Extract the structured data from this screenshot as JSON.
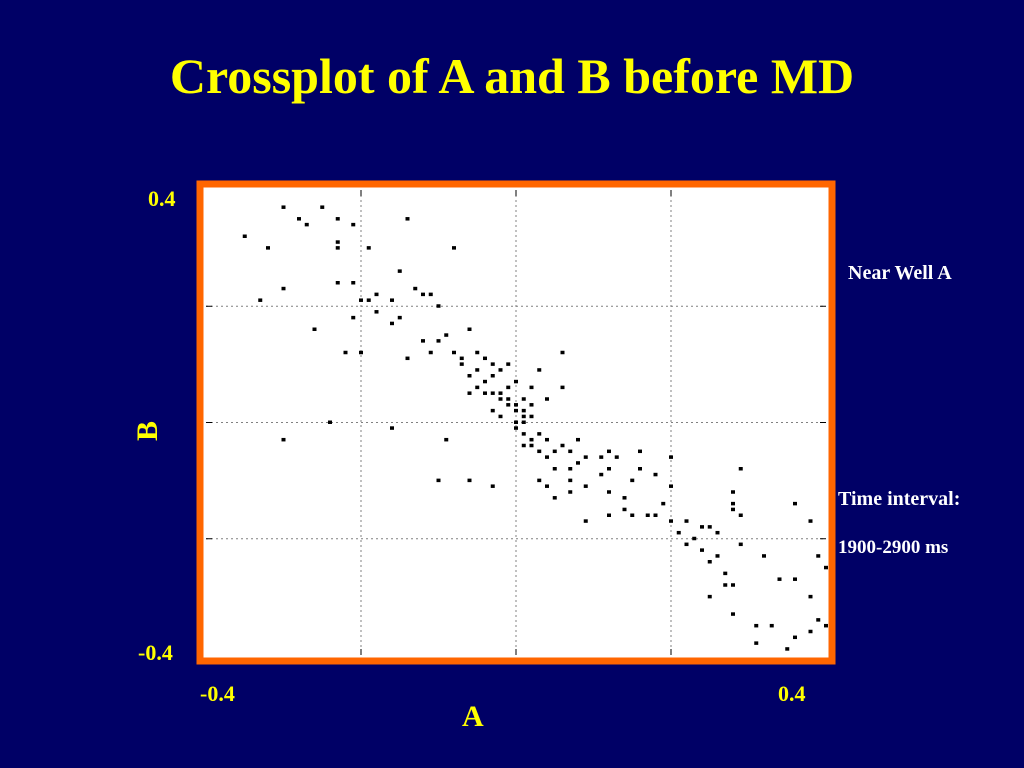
{
  "title": "Crossplot of A and B before MD",
  "annotations": {
    "near_well": "Near Well A",
    "time_interval_label": "Time interval:",
    "time_interval_value": "1900-2900 ms"
  },
  "colors": {
    "background": "#000066",
    "title": "#ffff00",
    "frame": "#ff6600",
    "plot_bg": "#ffffff",
    "points": "#000000",
    "grid": "#808080",
    "annotation_text": "#ffffff"
  },
  "chart_data": {
    "type": "scatter",
    "title": "Crossplot of A and B before MD",
    "xlabel": "A",
    "ylabel": "B",
    "xlim": [
      -0.4,
      0.4
    ],
    "ylim": [
      -0.4,
      0.4
    ],
    "x_ticks": [
      {
        "value": -0.4,
        "label": "-0.4"
      },
      {
        "value": 0.4,
        "label": "0.4"
      }
    ],
    "y_ticks": [
      {
        "value": 0.4,
        "label": "0.4"
      },
      {
        "value": -0.4,
        "label": "-0.4"
      }
    ],
    "grid": true,
    "grid_x": [
      -0.2,
      0.0,
      0.2
    ],
    "grid_y": [
      -0.2,
      0.0,
      0.2
    ],
    "series": [
      {
        "points": [
          [
            -0.35,
            0.32
          ],
          [
            -0.32,
            0.3
          ],
          [
            -0.3,
            0.37
          ],
          [
            -0.28,
            0.35
          ],
          [
            -0.27,
            0.34
          ],
          [
            -0.25,
            0.37
          ],
          [
            -0.23,
            0.35
          ],
          [
            -0.23,
            0.31
          ],
          [
            -0.23,
            0.3
          ],
          [
            -0.21,
            0.34
          ],
          [
            -0.19,
            0.3
          ],
          [
            -0.14,
            0.35
          ],
          [
            -0.08,
            0.3
          ],
          [
            -0.33,
            0.21
          ],
          [
            -0.3,
            0.23
          ],
          [
            -0.23,
            0.24
          ],
          [
            -0.21,
            0.24
          ],
          [
            -0.2,
            0.21
          ],
          [
            -0.19,
            0.21
          ],
          [
            -0.18,
            0.22
          ],
          [
            -0.18,
            0.19
          ],
          [
            -0.16,
            0.21
          ],
          [
            -0.15,
            0.18
          ],
          [
            -0.15,
            0.26
          ],
          [
            -0.13,
            0.23
          ],
          [
            -0.12,
            0.22
          ],
          [
            -0.11,
            0.22
          ],
          [
            -0.1,
            0.2
          ],
          [
            -0.26,
            0.16
          ],
          [
            -0.22,
            0.12
          ],
          [
            -0.21,
            0.18
          ],
          [
            -0.2,
            0.12
          ],
          [
            -0.16,
            0.17
          ],
          [
            -0.14,
            0.11
          ],
          [
            -0.12,
            0.14
          ],
          [
            -0.11,
            0.12
          ],
          [
            -0.1,
            0.14
          ],
          [
            -0.09,
            0.15
          ],
          [
            -0.08,
            0.12
          ],
          [
            -0.07,
            0.11
          ],
          [
            -0.06,
            0.16
          ],
          [
            -0.05,
            0.12
          ],
          [
            -0.07,
            0.1
          ],
          [
            -0.06,
            0.08
          ],
          [
            -0.05,
            0.09
          ],
          [
            -0.04,
            0.11
          ],
          [
            -0.04,
            0.07
          ],
          [
            -0.03,
            0.1
          ],
          [
            -0.03,
            0.08
          ],
          [
            -0.02,
            0.09
          ],
          [
            -0.02,
            0.05
          ],
          [
            -0.01,
            0.1
          ],
          [
            -0.01,
            0.06
          ],
          [
            -0.01,
            0.04
          ],
          [
            0.0,
            0.03
          ],
          [
            0.0,
            0.07
          ],
          [
            0.01,
            0.04
          ],
          [
            0.01,
            0.02
          ],
          [
            0.02,
            0.06
          ],
          [
            0.02,
            0.03
          ],
          [
            0.03,
            0.09
          ],
          [
            0.04,
            0.04
          ],
          [
            0.06,
            0.12
          ],
          [
            0.06,
            0.06
          ],
          [
            -0.06,
            0.05
          ],
          [
            -0.05,
            0.06
          ],
          [
            -0.04,
            0.05
          ],
          [
            -0.03,
            0.05
          ],
          [
            -0.02,
            0.04
          ],
          [
            -0.01,
            0.03
          ],
          [
            0.0,
            0.02
          ],
          [
            0.01,
            0.01
          ],
          [
            -0.03,
            0.02
          ],
          [
            -0.02,
            0.01
          ],
          [
            0.0,
            0.0
          ],
          [
            0.01,
            0.0
          ],
          [
            0.02,
            0.01
          ],
          [
            -0.24,
            0.0
          ],
          [
            -0.16,
            -0.01
          ],
          [
            -0.3,
            -0.03
          ],
          [
            -0.09,
            -0.03
          ],
          [
            0.0,
            -0.01
          ],
          [
            0.01,
            -0.02
          ],
          [
            0.02,
            -0.03
          ],
          [
            0.03,
            -0.02
          ],
          [
            0.04,
            -0.03
          ],
          [
            0.02,
            -0.04
          ],
          [
            0.01,
            -0.04
          ],
          [
            0.03,
            -0.05
          ],
          [
            0.04,
            -0.06
          ],
          [
            0.05,
            -0.05
          ],
          [
            0.06,
            -0.04
          ],
          [
            0.07,
            -0.05
          ],
          [
            0.08,
            -0.03
          ],
          [
            0.08,
            -0.07
          ],
          [
            0.09,
            -0.06
          ],
          [
            0.07,
            -0.08
          ],
          [
            0.05,
            -0.08
          ],
          [
            0.11,
            -0.06
          ],
          [
            0.12,
            -0.05
          ],
          [
            0.12,
            -0.08
          ],
          [
            0.13,
            -0.06
          ],
          [
            0.16,
            -0.05
          ],
          [
            0.2,
            -0.06
          ],
          [
            -0.1,
            -0.1
          ],
          [
            -0.06,
            -0.1
          ],
          [
            -0.03,
            -0.11
          ],
          [
            0.03,
            -0.1
          ],
          [
            0.04,
            -0.11
          ],
          [
            0.05,
            -0.13
          ],
          [
            0.07,
            -0.12
          ],
          [
            0.07,
            -0.1
          ],
          [
            0.09,
            -0.11
          ],
          [
            0.11,
            -0.09
          ],
          [
            0.12,
            -0.12
          ],
          [
            0.15,
            -0.1
          ],
          [
            0.16,
            -0.08
          ],
          [
            0.18,
            -0.09
          ],
          [
            0.2,
            -0.11
          ],
          [
            0.09,
            -0.17
          ],
          [
            0.12,
            -0.16
          ],
          [
            0.14,
            -0.15
          ],
          [
            0.15,
            -0.16
          ],
          [
            0.17,
            -0.16
          ],
          [
            0.18,
            -0.16
          ],
          [
            0.2,
            -0.17
          ],
          [
            0.22,
            -0.17
          ],
          [
            0.24,
            -0.18
          ],
          [
            0.25,
            -0.18
          ],
          [
            0.28,
            -0.12
          ],
          [
            0.28,
            -0.14
          ],
          [
            0.28,
            -0.15
          ],
          [
            0.29,
            -0.08
          ],
          [
            0.29,
            -0.16
          ],
          [
            0.36,
            -0.14
          ],
          [
            0.38,
            -0.17
          ],
          [
            0.14,
            -0.13
          ],
          [
            0.19,
            -0.14
          ],
          [
            0.21,
            -0.19
          ],
          [
            0.22,
            -0.21
          ],
          [
            0.23,
            -0.2
          ],
          [
            0.24,
            -0.22
          ],
          [
            0.25,
            -0.24
          ],
          [
            0.26,
            -0.19
          ],
          [
            0.27,
            -0.26
          ],
          [
            0.28,
            -0.28
          ],
          [
            0.27,
            -0.28
          ],
          [
            0.26,
            -0.23
          ],
          [
            0.29,
            -0.21
          ],
          [
            0.32,
            -0.23
          ],
          [
            0.36,
            -0.27
          ],
          [
            0.39,
            -0.23
          ],
          [
            0.4,
            -0.25
          ],
          [
            0.25,
            -0.3
          ],
          [
            0.28,
            -0.33
          ],
          [
            0.31,
            -0.35
          ],
          [
            0.33,
            -0.35
          ],
          [
            0.34,
            -0.27
          ],
          [
            0.38,
            -0.3
          ],
          [
            0.39,
            -0.34
          ],
          [
            0.4,
            -0.35
          ],
          [
            0.36,
            -0.37
          ],
          [
            0.38,
            -0.36
          ],
          [
            0.31,
            -0.38
          ],
          [
            0.35,
            -0.39
          ]
        ]
      }
    ]
  }
}
